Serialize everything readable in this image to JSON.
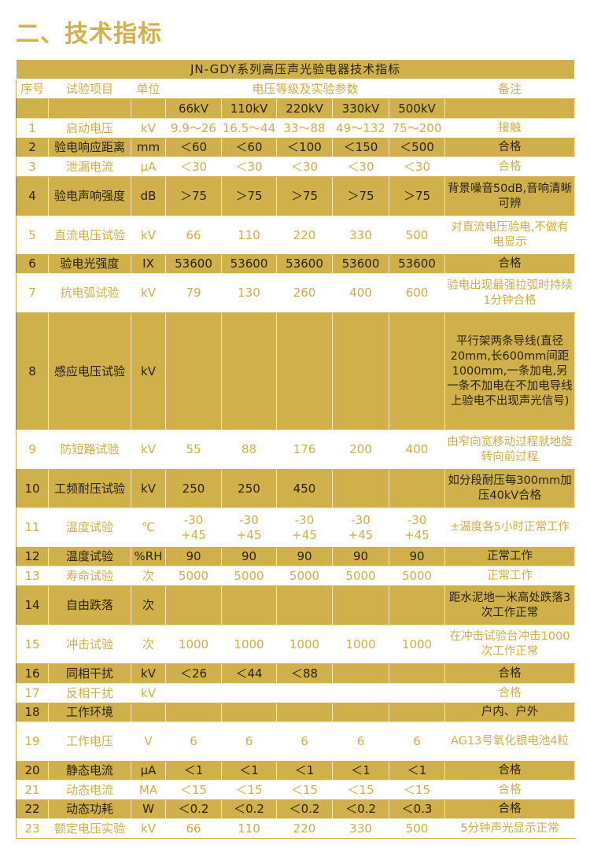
{
  "heading": "二、技术指标",
  "table": {
    "title": "JN-GDY系列高压声光验电器技术指标",
    "headers": {
      "no": "序号",
      "item": "试验项目",
      "unit": "单位",
      "params": "电压等级及实验参数",
      "note": "备注"
    },
    "voltages": [
      "66kV",
      "110kV",
      "220kV",
      "330kV",
      "500kV"
    ],
    "rows": [
      {
        "no": "1",
        "item": "启动电压",
        "unit": "kV",
        "v": [
          "9.9～26",
          "16.5～44",
          "33～88",
          "49～132",
          "75～200"
        ],
        "note": "接触"
      },
      {
        "no": "2",
        "item": "验电响应距离",
        "unit": "mm",
        "v": [
          "＜60",
          "＜60",
          "＜100",
          "＜150",
          "＜500"
        ],
        "note": "合格"
      },
      {
        "no": "3",
        "item": "泄漏电流",
        "unit": "μA",
        "v": [
          "＜30",
          "＜30",
          "＜30",
          "＜30",
          "＜30"
        ],
        "note": "合格"
      },
      {
        "no": "4",
        "item": "验电声响强度",
        "unit": "dB",
        "v": [
          "＞75",
          "＞75",
          "＞75",
          "＞75",
          "＞75"
        ],
        "note": "背景噪音50dB,音响清晰可辨"
      },
      {
        "no": "5",
        "item": "直流电压试验",
        "unit": "kV",
        "v": [
          "66",
          "110",
          "220",
          "330",
          "500"
        ],
        "note": "对直流电压验电,不做有电显示"
      },
      {
        "no": "6",
        "item": "验电光强度",
        "unit": "IX",
        "v": [
          "53600",
          "53600",
          "53600",
          "53600",
          "53600"
        ],
        "note": "合格"
      },
      {
        "no": "7",
        "item": "抗电弧试验",
        "unit": "kV",
        "v": [
          "79",
          "130",
          "260",
          "400",
          "600"
        ],
        "note": "验电出现最强拉弧时持续1分钟合格"
      },
      {
        "no": "8",
        "item": "感应电压试验",
        "unit": "kV",
        "v": [
          "",
          "",
          "",
          "",
          ""
        ],
        "note": "平行架两条导线(直径20mm,长600mm间距1000mm,一条加电,另一条不加电在不加电导线上验电不出现声光信号)"
      },
      {
        "no": "9",
        "item": "防短路试验",
        "unit": "kV",
        "v": [
          "55",
          "88",
          "176",
          "200",
          "400"
        ],
        "note": "由窄向宽移动过程就地旋转向前过程"
      },
      {
        "no": "10",
        "item": "工频耐压试验",
        "unit": "kV",
        "v": [
          "250",
          "250",
          "450",
          "",
          ""
        ],
        "note": "如分段耐压每300mm加压40kV合格"
      },
      {
        "no": "11",
        "item": "温度试验",
        "unit": "℃",
        "v": [
          "-30 +45",
          "-30 +45",
          "-30 +45",
          "-30 +45",
          "-30 +45"
        ],
        "note": "±温度各5小时正常工作"
      },
      {
        "no": "12",
        "item": "温度试验",
        "unit": "%RH",
        "v": [
          "90",
          "90",
          "90",
          "90",
          "90"
        ],
        "note": "正常工作"
      },
      {
        "no": "13",
        "item": "寿命试验",
        "unit": "次",
        "v": [
          "5000",
          "5000",
          "5000",
          "5000",
          "5000"
        ],
        "note": "正常工作"
      },
      {
        "no": "14",
        "item": "自由跌落",
        "unit": "次",
        "v": [
          "",
          "",
          "",
          "",
          ""
        ],
        "note": "距水泥地一米高处跌落3次工作正常"
      },
      {
        "no": "15",
        "item": "冲击试验",
        "unit": "次",
        "v": [
          "1000",
          "1000",
          "1000",
          "1000",
          "1000"
        ],
        "note": "在冲击试验台冲击1000次工作正常"
      },
      {
        "no": "16",
        "item": "同相干扰",
        "unit": "kV",
        "v": [
          "＜26",
          "＜44",
          "＜88",
          "",
          ""
        ],
        "note": "合格"
      },
      {
        "no": "17",
        "item": "反相干扰",
        "unit": "kV",
        "v": [
          "",
          "",
          "",
          "",
          ""
        ],
        "note": "合格"
      },
      {
        "no": "18",
        "item": "工作环境",
        "unit": "",
        "v": [
          "",
          "",
          "",
          "",
          ""
        ],
        "note": "户内、户外"
      },
      {
        "no": "19",
        "item": "工作电压",
        "unit": "V",
        "v": [
          "6",
          "6",
          "6",
          "6",
          "6"
        ],
        "note": "AG13号氧化银电池4粒"
      },
      {
        "no": "20",
        "item": "静态电流",
        "unit": "μA",
        "v": [
          "＜1",
          "＜1",
          "＜1",
          "＜1",
          "＜1"
        ],
        "note": "合格"
      },
      {
        "no": "21",
        "item": "动态电流",
        "unit": "MA",
        "v": [
          "＜15",
          "＜15",
          "＜15",
          "＜15",
          "＜15"
        ],
        "note": "合格"
      },
      {
        "no": "22",
        "item": "动态功耗",
        "unit": "W",
        "v": [
          "＜0.2",
          "＜0.2",
          "＜0.2",
          "＜0.2",
          "＜0.3"
        ],
        "note": "合格"
      },
      {
        "no": "23",
        "item": "额定电压实验",
        "unit": "kV",
        "v": [
          "66",
          "110",
          "220",
          "330",
          "500"
        ],
        "note": "5分钟声光显示正常"
      }
    ]
  }
}
